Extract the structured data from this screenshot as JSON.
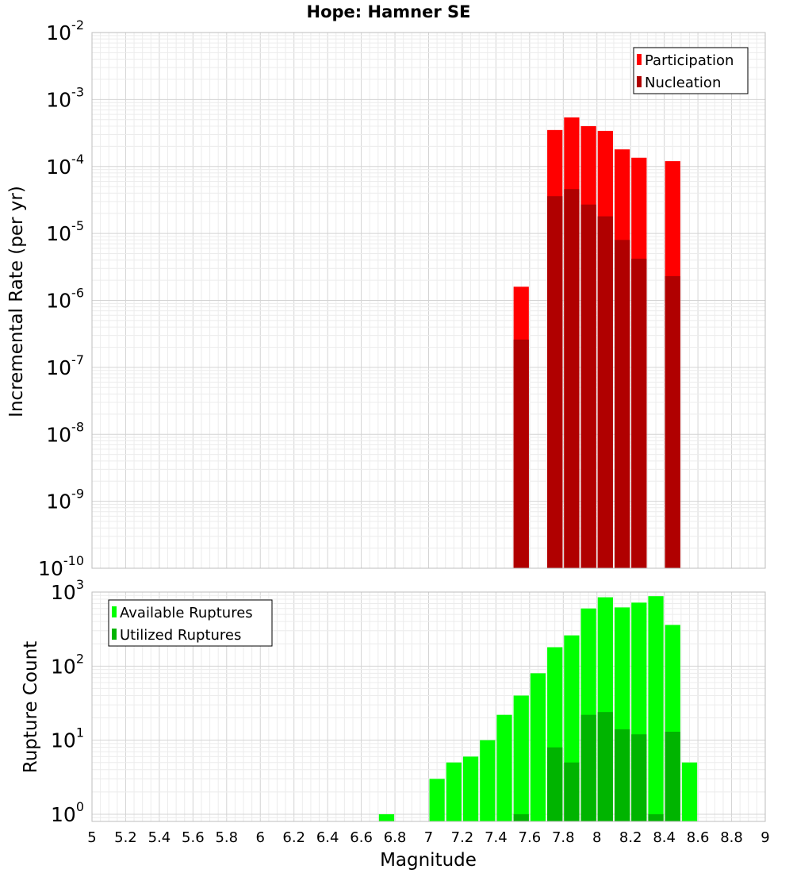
{
  "chart_data": [
    {
      "type": "bar",
      "title": "Hope: Hamner SE",
      "xlabel": "",
      "ylabel": "Incremental Rate (per yr)",
      "yscale": "log",
      "xlim": [
        5,
        9
      ],
      "ylim": [
        1e-10,
        0.01
      ],
      "ytick_exponents": [
        -10,
        -9,
        -8,
        -7,
        -6,
        -5,
        -4,
        -3,
        -2
      ],
      "grid": true,
      "legend": {
        "position": "top-right",
        "entries": [
          "Participation",
          "Nucleation"
        ]
      },
      "bar_width": 0.1,
      "series": [
        {
          "name": "Participation",
          "color": "#ff0000",
          "points": [
            [
              7.55,
              1.6e-06
            ],
            [
              7.75,
              0.00035
            ],
            [
              7.85,
              0.00054
            ],
            [
              7.95,
              0.0004
            ],
            [
              8.05,
              0.00034
            ],
            [
              8.15,
              0.00018
            ],
            [
              8.25,
              0.000135
            ],
            [
              8.45,
              0.00012
            ]
          ]
        },
        {
          "name": "Nucleation",
          "color": "#b00000",
          "points": [
            [
              7.55,
              2.6e-07
            ],
            [
              7.75,
              3.6e-05
            ],
            [
              7.85,
              4.6e-05
            ],
            [
              7.95,
              2.7e-05
            ],
            [
              8.05,
              1.8e-05
            ],
            [
              8.15,
              8e-06
            ],
            [
              8.25,
              4.2e-06
            ],
            [
              8.45,
              2.3e-06
            ]
          ]
        }
      ]
    },
    {
      "type": "bar",
      "title": "",
      "xlabel": "Magnitude",
      "ylabel": "Rupture Count",
      "yscale": "log",
      "xlim": [
        5,
        9
      ],
      "ylim": [
        0.8,
        1000
      ],
      "ytick_exponents": [
        0,
        1,
        2,
        3
      ],
      "xticks": [
        "5",
        "5.2",
        "5.4",
        "5.6",
        "5.8",
        "6",
        "6.2",
        "6.4",
        "6.6",
        "6.8",
        "7",
        "7.2",
        "7.4",
        "7.6",
        "7.8",
        "8",
        "8.2",
        "8.4",
        "8.6",
        "8.8",
        "9"
      ],
      "grid": true,
      "legend": {
        "position": "top-left",
        "entries": [
          "Available Ruptures",
          "Utilized Ruptures"
        ]
      },
      "bar_width": 0.1,
      "series": [
        {
          "name": "Available Ruptures",
          "color": "#00ff00",
          "points": [
            [
              6.75,
              1
            ],
            [
              7.05,
              3
            ],
            [
              7.15,
              5
            ],
            [
              7.25,
              6
            ],
            [
              7.35,
              10
            ],
            [
              7.45,
              22
            ],
            [
              7.55,
              40
            ],
            [
              7.65,
              80
            ],
            [
              7.75,
              180
            ],
            [
              7.85,
              260
            ],
            [
              7.95,
              600
            ],
            [
              8.05,
              850
            ],
            [
              8.15,
              620
            ],
            [
              8.25,
              720
            ],
            [
              8.35,
              880
            ],
            [
              8.45,
              360
            ],
            [
              8.55,
              5
            ]
          ]
        },
        {
          "name": "Utilized Ruptures",
          "color": "#00b400",
          "points": [
            [
              7.55,
              1
            ],
            [
              7.75,
              8
            ],
            [
              7.85,
              5
            ],
            [
              7.95,
              22
            ],
            [
              8.05,
              24
            ],
            [
              8.15,
              14
            ],
            [
              8.25,
              12
            ],
            [
              8.35,
              1
            ],
            [
              8.45,
              13
            ]
          ]
        }
      ]
    }
  ]
}
